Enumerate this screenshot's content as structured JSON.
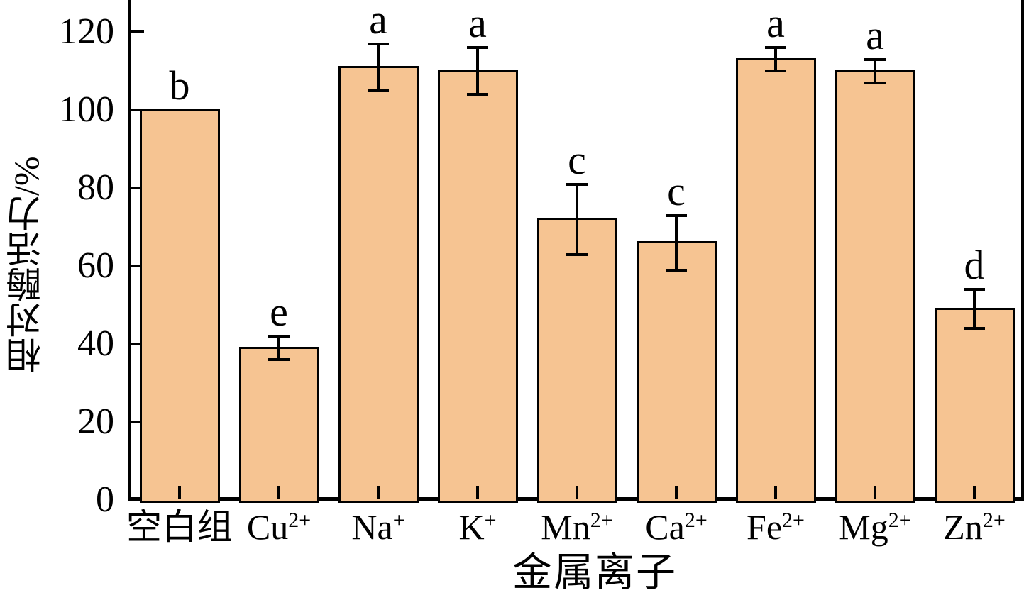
{
  "figure": {
    "kind": "scientific-bar-chart",
    "background_color": "#FFFFFF",
    "axis_color": "#000000",
    "text_color": "#000000"
  },
  "chart_data": {
    "type": "bar",
    "title": "",
    "xlabel": "金属离子",
    "ylabel": "相对酶活力/%",
    "categories": [
      {
        "base": "空白组",
        "sup": ""
      },
      {
        "base": "Cu",
        "sup": "2+"
      },
      {
        "base": "Na",
        "sup": "+"
      },
      {
        "base": "K",
        "sup": "+"
      },
      {
        "base": "Mn",
        "sup": "2+"
      },
      {
        "base": "Ca",
        "sup": "2+"
      },
      {
        "base": "Fe",
        "sup": "2+"
      },
      {
        "base": "Mg",
        "sup": "2+"
      },
      {
        "base": "Zn",
        "sup": "2+"
      }
    ],
    "series": [
      {
        "name": "相对酶活力",
        "values": [
          100,
          39,
          111,
          110,
          72,
          66,
          113,
          110,
          49
        ],
        "errors": [
          0,
          3,
          6,
          6,
          9,
          7,
          3,
          3,
          5
        ],
        "sig_letters": [
          "b",
          "e",
          "a",
          "a",
          "c",
          "c",
          "a",
          "a",
          "d"
        ]
      }
    ],
    "yticks": [
      0,
      20,
      40,
      60,
      80,
      100,
      120
    ],
    "ylim": [
      0,
      128
    ],
    "grid": false,
    "legend": null,
    "bar_color": "#F6C492",
    "bar_border_color": "#000000",
    "error_bar_color": "#000000"
  }
}
